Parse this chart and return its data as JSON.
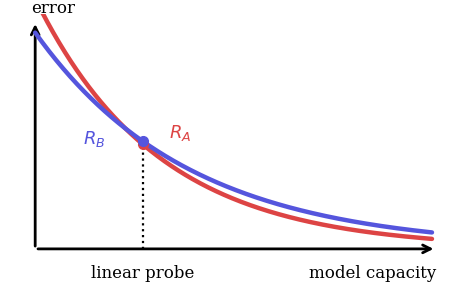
{
  "background_color": "#ffffff",
  "blue_color": "#5555dd",
  "red_color": "#dd4444",
  "x_label": "model capacity",
  "y_label": "error",
  "annotation_A": "$R_A$",
  "annotation_B": "$R_B$",
  "linear_probe_label": "linear probe",
  "linear_probe_x": 0.3,
  "xlim": [
    0.0,
    1.0
  ],
  "ylim": [
    0.0,
    1.05
  ],
  "line_width": 3.2,
  "figsize": [
    4.54,
    2.88
  ],
  "dpi": 100
}
